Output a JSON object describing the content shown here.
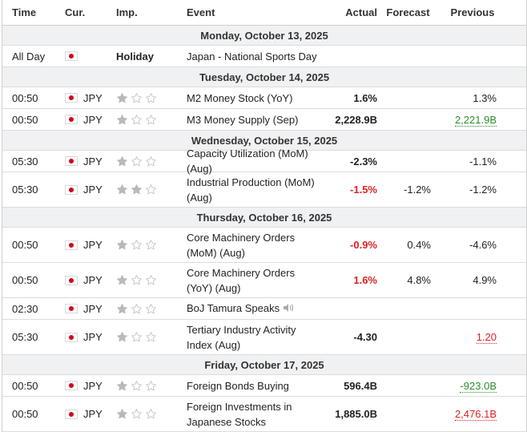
{
  "headers": {
    "time": "Time",
    "cur": "Cur.",
    "imp": "Imp.",
    "event": "Event",
    "actual": "Actual",
    "forecast": "Forecast",
    "previous": "Previous"
  },
  "days": [
    {
      "label": "Monday, October 13, 2025"
    },
    {
      "label": "Tuesday, October 14, 2025"
    },
    {
      "label": "Wednesday, October 15, 2025"
    },
    {
      "label": "Thursday, October 16, 2025"
    },
    {
      "label": "Friday, October 17, 2025"
    }
  ],
  "holiday": {
    "time": "All Day",
    "imp": "Holiday",
    "event": "Japan - National Sports Day"
  },
  "events": [
    {
      "time": "00:50",
      "cur": "JPY",
      "stars": 1,
      "event": "M2 Money Stock (YoY)",
      "actual": "1.6%",
      "forecast": "",
      "previous": "1.3%"
    },
    {
      "time": "00:50",
      "cur": "JPY",
      "stars": 1,
      "event": "M3 Money Supply (Sep)",
      "actual": "2,228.9B",
      "forecast": "",
      "previous": "2,221.9B"
    },
    {
      "time": "05:30",
      "cur": "JPY",
      "stars": 1,
      "event": "Capacity Utilization (MoM) (Aug)",
      "actual": "-2.3%",
      "forecast": "",
      "previous": "-1.1%"
    },
    {
      "time": "05:30",
      "cur": "JPY",
      "stars": 2,
      "event": "Industrial Production (MoM) (Aug)",
      "actual": "-1.5%",
      "forecast": "-1.2%",
      "previous": "-1.2%"
    },
    {
      "time": "00:50",
      "cur": "JPY",
      "stars": 1,
      "event": "Core Machinery Orders (MoM) (Aug)",
      "actual": "-0.9%",
      "forecast": "0.4%",
      "previous": "-4.6%"
    },
    {
      "time": "00:50",
      "cur": "JPY",
      "stars": 1,
      "event": "Core Machinery Orders (YoY) (Aug)",
      "actual": "1.6%",
      "forecast": "4.8%",
      "previous": "4.9%"
    },
    {
      "time": "02:30",
      "cur": "JPY",
      "stars": 1,
      "event": "BoJ Tamura Speaks",
      "actual": "",
      "forecast": "",
      "previous": ""
    },
    {
      "time": "05:30",
      "cur": "JPY",
      "stars": 1,
      "event": "Tertiary Industry Activity Index (Aug)",
      "actual": "-4.30",
      "forecast": "",
      "previous": "1.20"
    },
    {
      "time": "00:50",
      "cur": "JPY",
      "stars": 1,
      "event": "Foreign Bonds Buying",
      "actual": "596.4B",
      "forecast": "",
      "previous": "-923.0B"
    },
    {
      "time": "00:50",
      "cur": "JPY",
      "stars": 1,
      "event": "Foreign Investments in Japanese Stocks",
      "actual": "1,885.0B",
      "forecast": "",
      "previous": "2,476.1B"
    }
  ],
  "colors": {
    "negative": "#dd2222",
    "positive": "#2e8b2e",
    "day_header_bg": "#f0f1f3",
    "star_filled": "#b9b9b9",
    "flag_red": "#d0021b"
  }
}
